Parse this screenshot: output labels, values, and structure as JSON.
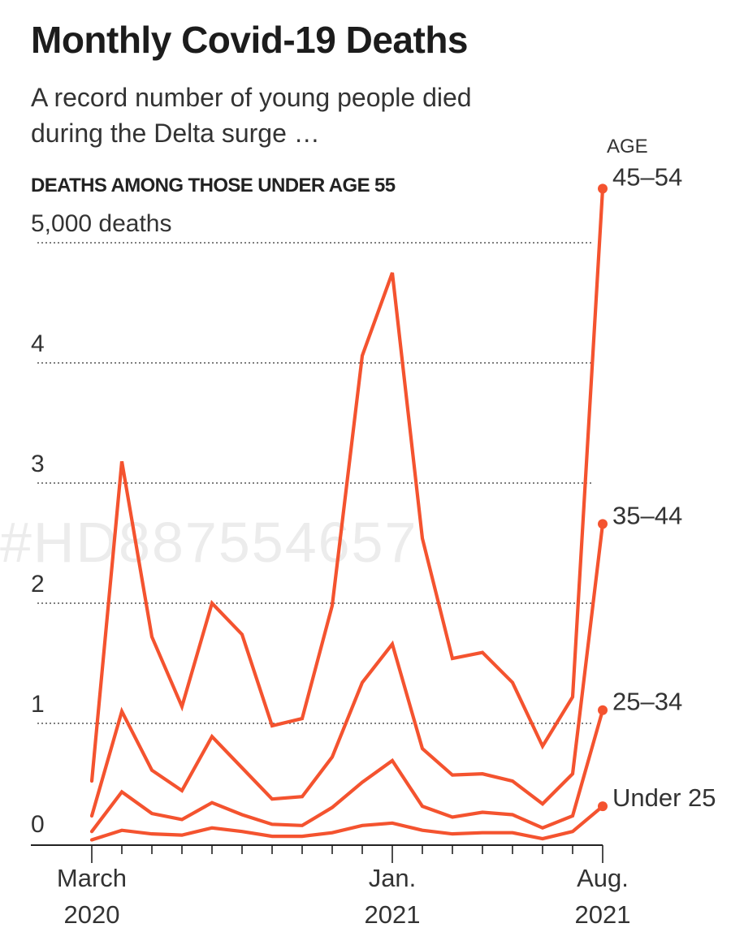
{
  "header": {
    "title": "Monthly Covid-19 Deaths",
    "subtitle": "A record number of young people died during the Delta surge …"
  },
  "watermark": "#HD887554657",
  "chart_data": {
    "type": "line",
    "title": "DEATHS AMONG THOSE UNDER AGE 55",
    "y_unit_label": "5,000 deaths",
    "legend_header": "AGE",
    "ylim": [
      0,
      5000
    ],
    "yticks": [
      {
        "value": 0,
        "label": "0"
      },
      {
        "value": 1000,
        "label": "1"
      },
      {
        "value": 2000,
        "label": "2"
      },
      {
        "value": 3000,
        "label": "3"
      },
      {
        "value": 4000,
        "label": "4"
      },
      {
        "value": 5000,
        "label": "5,000 deaths"
      }
    ],
    "x": [
      "2020-03",
      "2020-04",
      "2020-05",
      "2020-06",
      "2020-07",
      "2020-08",
      "2020-09",
      "2020-10",
      "2020-11",
      "2020-12",
      "2021-01",
      "2021-02",
      "2021-03",
      "2021-04",
      "2021-05",
      "2021-06",
      "2021-07",
      "2021-08"
    ],
    "xtick_labels": [
      {
        "index": 0,
        "line1": "March",
        "line2": "2020"
      },
      {
        "index": 10,
        "line1": "Jan.",
        "line2": "2021"
      },
      {
        "index": 17,
        "line1": "Aug.",
        "line2": "2021"
      }
    ],
    "color": "#f4532f",
    "series": [
      {
        "name": "45–54",
        "values": [
          520,
          3180,
          1720,
          1140,
          2000,
          1740,
          980,
          1040,
          1980,
          4060,
          4750,
          2540,
          1540,
          1590,
          1340,
          810,
          1220,
          5450
        ]
      },
      {
        "name": "35–44",
        "values": [
          230,
          1100,
          610,
          440,
          890,
          630,
          370,
          390,
          720,
          1340,
          1660,
          790,
          570,
          580,
          520,
          330,
          580,
          2660
        ]
      },
      {
        "name": "25–34",
        "values": [
          100,
          430,
          250,
          200,
          340,
          240,
          160,
          150,
          300,
          510,
          690,
          310,
          220,
          260,
          240,
          130,
          230,
          1110
        ]
      },
      {
        "name": "Under 25",
        "values": [
          30,
          110,
          80,
          70,
          130,
          100,
          60,
          60,
          90,
          150,
          170,
          110,
          80,
          90,
          90,
          40,
          100,
          310
        ]
      }
    ]
  }
}
